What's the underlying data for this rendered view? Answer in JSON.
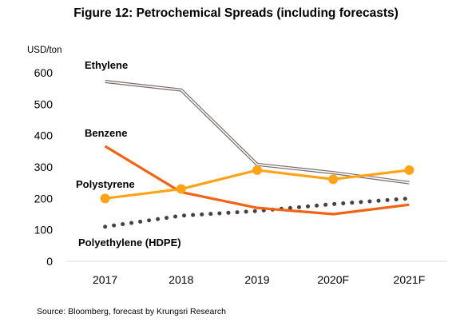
{
  "title": "Figure 12: Petrochemical Spreads (including forecasts)",
  "source": "Source: Bloomberg, forecast by Krungsri Research",
  "chart_data": {
    "type": "line",
    "title": "Figure 12: Petrochemical Spreads (including forecasts)",
    "ylabel": "USD/ton",
    "xlabel": "",
    "categories": [
      "2017",
      "2018",
      "2019",
      "2020F",
      "2021F"
    ],
    "ylim": [
      0,
      600
    ],
    "yticks": [
      0,
      100,
      200,
      300,
      400,
      500,
      600
    ],
    "grid": false,
    "legend": "inline labels",
    "series": [
      {
        "name": "Ethylene",
        "values": [
          572,
          545,
          308,
          282,
          250
        ],
        "color": "#7a6a6a",
        "style": "double"
      },
      {
        "name": "Benzene",
        "values": [
          366,
          220,
          170,
          150,
          180
        ],
        "color": "#f06414",
        "style": "solid"
      },
      {
        "name": "Polystyrene",
        "values": [
          200,
          230,
          290,
          261,
          290
        ],
        "color": "#ffa319",
        "style": "marker"
      },
      {
        "name": "Polyethylene (HDPE)",
        "values": [
          110,
          145,
          160,
          182,
          200
        ],
        "color": "#4d4040",
        "style": "dotted"
      }
    ]
  }
}
